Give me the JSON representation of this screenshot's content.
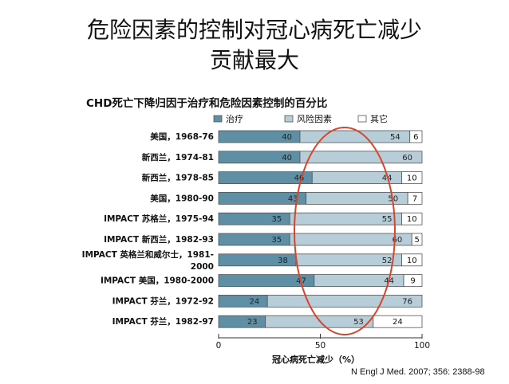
{
  "slide": {
    "title_line1": "危险因素的控制对冠心病死亡减少",
    "title_line2": "贡献最大",
    "source": "N Engl J Med. 2007; 356: 2388-98"
  },
  "colors": {
    "treatment": "#5f8fa4",
    "risk": "#b7cdd8",
    "other": "#ffffff",
    "ellipse": "#d9442a"
  },
  "chart_data": {
    "type": "bar",
    "orientation": "horizontal",
    "stacked": true,
    "title": "CHD死亡下降归因于治疗和危险因素控制的百分比",
    "xlabel": "冠心病死亡减少（%）",
    "xlim": [
      0,
      100
    ],
    "xticks": [
      "0",
      "50",
      "100"
    ],
    "legend": [
      "治疗",
      "风险因素",
      "其它"
    ],
    "legend_position": "top",
    "categories": [
      [
        "美国，1968-76"
      ],
      [
        "新西兰，1974-81"
      ],
      [
        "新西兰，1978-85"
      ],
      [
        "美国，1980-90"
      ],
      [
        "IMPACT 苏格兰，1975-94"
      ],
      [
        "IMPACT 新西兰，1982-93"
      ],
      [
        "IMPACT 英格兰和威尔士，1981-",
        "2000"
      ],
      [
        "IMPACT 美国，1980-2000"
      ],
      [
        "IMPACT 芬兰，1972-92"
      ],
      [
        "IMPACT 芬兰，1982-97"
      ]
    ],
    "series": [
      {
        "name": "治疗",
        "values": [
          40,
          40,
          46,
          43,
          35,
          35,
          38,
          47,
          24,
          23
        ]
      },
      {
        "name": "风险因素",
        "values": [
          54,
          60,
          44,
          50,
          55,
          60,
          52,
          44,
          76,
          53
        ]
      },
      {
        "name": "其它",
        "values": [
          6,
          null,
          10,
          7,
          10,
          5,
          10,
          9,
          null,
          24
        ]
      }
    ],
    "annotation": "red ellipse highlighting the risk-factor segments"
  }
}
